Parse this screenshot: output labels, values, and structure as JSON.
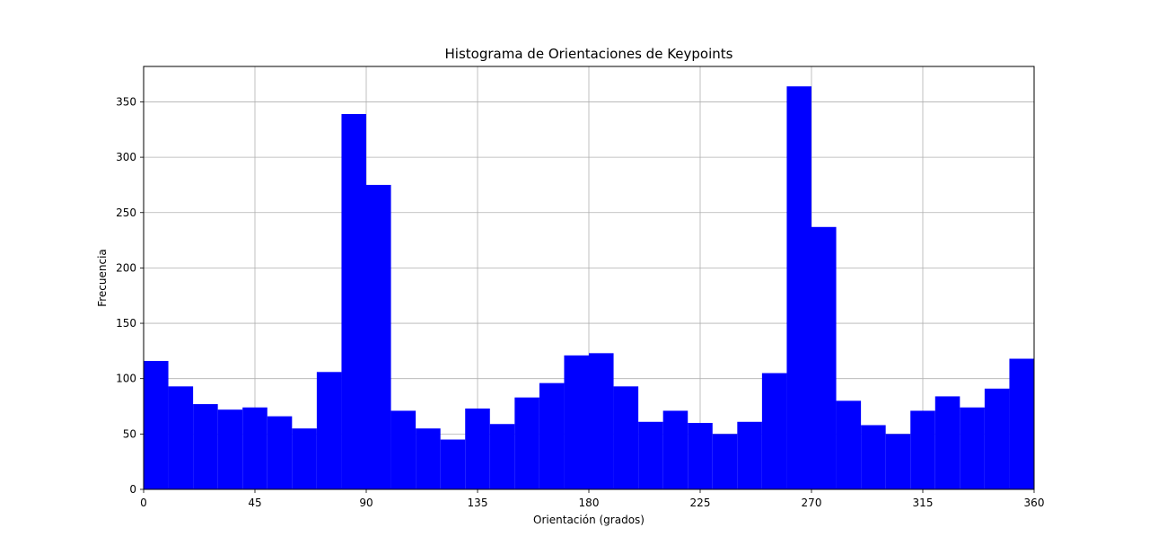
{
  "chart_data": {
    "type": "bar",
    "title": "Histograma de Orientaciones de Keypoints",
    "xlabel": "Orientación (grados)",
    "ylabel": "Frecuencia",
    "xlim": [
      0,
      360
    ],
    "ylim": [
      0,
      382
    ],
    "xticks": [
      0,
      45,
      90,
      135,
      180,
      225,
      270,
      315,
      360
    ],
    "yticks": [
      0,
      50,
      100,
      150,
      200,
      250,
      300,
      350
    ],
    "grid": true,
    "bar_color": "#0000ff",
    "bin_edges": [
      0,
      10,
      20,
      30,
      40,
      50,
      60,
      70,
      80,
      90,
      100,
      110,
      120,
      130,
      140,
      150,
      160,
      170,
      180,
      190,
      200,
      210,
      220,
      230,
      240,
      250,
      260,
      270,
      280,
      290,
      300,
      310,
      320,
      330,
      340,
      350,
      360
    ],
    "values": [
      116,
      93,
      77,
      72,
      74,
      66,
      55,
      106,
      339,
      275,
      71,
      55,
      45,
      73,
      59,
      83,
      96,
      121,
      123,
      93,
      61,
      71,
      60,
      50,
      61,
      105,
      364,
      237,
      80,
      58,
      50,
      71,
      84,
      74,
      91,
      118
    ]
  }
}
